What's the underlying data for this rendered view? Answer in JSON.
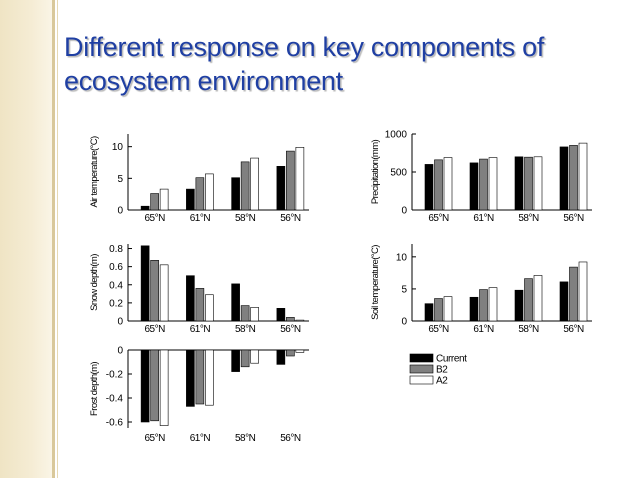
{
  "slide": {
    "title": "Different response on key components of ecosystem environment"
  },
  "legend": [
    "Current",
    "B2",
    "A2"
  ],
  "colors": {
    "Current": "#000000",
    "B2": "#808080",
    "A2": "#ffffff",
    "title": "#1f3fa3"
  },
  "chart_data": [
    {
      "type": "bar",
      "ylabel": "Air temperature(°C)",
      "categories": [
        "65°N",
        "61°N",
        "58°N",
        "56°N"
      ],
      "series": [
        {
          "name": "Current",
          "values": [
            0.6,
            3.3,
            5.1,
            6.9
          ]
        },
        {
          "name": "B2",
          "values": [
            2.6,
            5.1,
            7.6,
            9.3
          ]
        },
        {
          "name": "A2",
          "values": [
            3.3,
            5.7,
            8.2,
            9.9
          ]
        }
      ],
      "ylim": [
        0,
        12
      ],
      "yticks": [
        "0",
        "5",
        "10"
      ]
    },
    {
      "type": "bar",
      "ylabel": "Precipitation(mm)",
      "categories": [
        "65°N",
        "61°N",
        "58°N",
        "56°N"
      ],
      "series": [
        {
          "name": "Current",
          "values": [
            600,
            620,
            700,
            830
          ]
        },
        {
          "name": "B2",
          "values": [
            660,
            670,
            695,
            850
          ]
        },
        {
          "name": "A2",
          "values": [
            690,
            690,
            700,
            880
          ]
        }
      ],
      "ylim": [
        0,
        1000
      ],
      "yticks": [
        "0",
        "500",
        "1000"
      ]
    },
    {
      "type": "bar",
      "ylabel": "Snow depth(m)",
      "categories": [
        "65°N",
        "61°N",
        "58°N",
        "56°N"
      ],
      "series": [
        {
          "name": "Current",
          "values": [
            0.83,
            0.5,
            0.41,
            0.14
          ]
        },
        {
          "name": "B2",
          "values": [
            0.67,
            0.36,
            0.17,
            0.04
          ]
        },
        {
          "name": "A2",
          "values": [
            0.62,
            0.29,
            0.15,
            0.01
          ]
        }
      ],
      "ylim": [
        0,
        0.85
      ],
      "yticks": [
        "0",
        "0.2",
        "0.4",
        "0.6",
        "0.8"
      ]
    },
    {
      "type": "bar",
      "ylabel": "Soil temperature(°C)",
      "categories": [
        "65°N",
        "61°N",
        "58°N",
        "56°N"
      ],
      "series": [
        {
          "name": "Current",
          "values": [
            2.7,
            3.7,
            4.8,
            6.1
          ]
        },
        {
          "name": "B2",
          "values": [
            3.5,
            4.9,
            6.6,
            8.4
          ]
        },
        {
          "name": "A2",
          "values": [
            3.8,
            5.2,
            7.1,
            9.2
          ]
        }
      ],
      "ylim": [
        0,
        12
      ],
      "yticks": [
        "0",
        "5",
        "10"
      ]
    },
    {
      "type": "bar",
      "ylabel": "Frost depth(m)",
      "categories": [
        "65°N",
        "61°N",
        "58°N",
        "56°N"
      ],
      "series": [
        {
          "name": "Current",
          "values": [
            -0.6,
            -0.47,
            -0.18,
            -0.12
          ]
        },
        {
          "name": "B2",
          "values": [
            -0.59,
            -0.45,
            -0.14,
            -0.05
          ]
        },
        {
          "name": "A2",
          "values": [
            -0.63,
            -0.46,
            -0.11,
            -0.02
          ]
        }
      ],
      "ylim": [
        -0.65,
        0
      ],
      "yticks": [
        "0",
        "-0.2",
        "-0.4",
        "-0.6"
      ]
    }
  ]
}
